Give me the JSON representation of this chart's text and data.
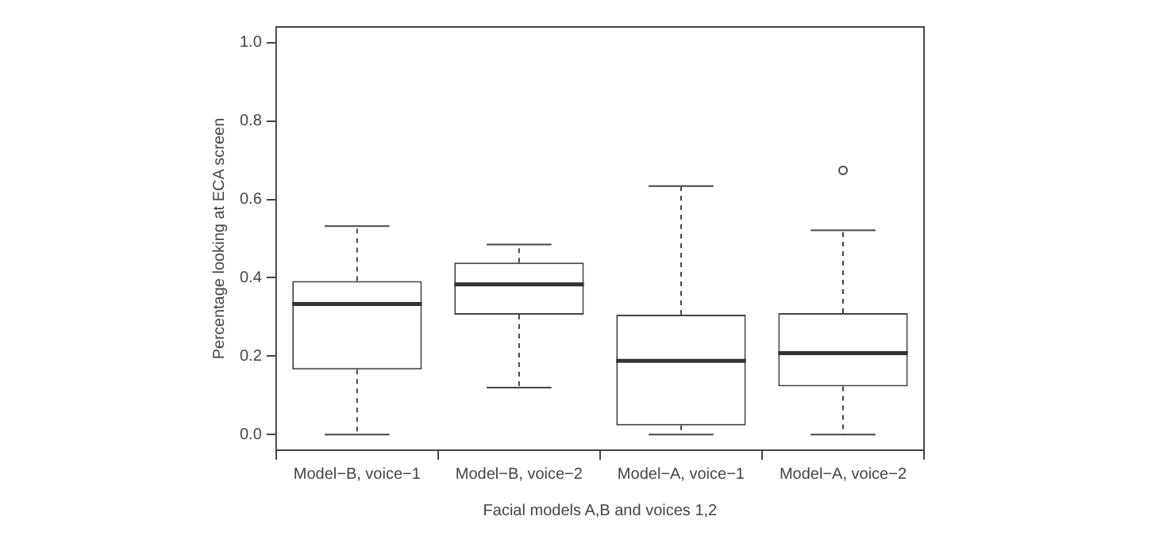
{
  "chart_data": {
    "type": "box",
    "xlabel": "Facial models A,B and voices 1,2",
    "ylabel": "Percentage looking at ECA screen",
    "categories": [
      "Model−B, voice−1",
      "Model−B, voice−2",
      "Model−A, voice−1",
      "Model−A, voice−2"
    ],
    "boxes": [
      {
        "low": 0,
        "q1": 0.166,
        "median": 0.333,
        "q3": 0.392,
        "high": 0.532
      },
      {
        "low": 0.12,
        "q1": 0.306,
        "median": 0.383,
        "q3": 0.439,
        "high": 0.485
      },
      {
        "low": 0,
        "q1": 0.023,
        "median": 0.188,
        "q3": 0.306,
        "high": 0.634
      },
      {
        "low": 0,
        "q1": 0.123,
        "median": 0.208,
        "q3": 0.31,
        "high": 0.521,
        "outliers": [
          0.674
        ]
      }
    ],
    "ylim": [
      -0.04,
      1.04
    ],
    "yticks": [
      {
        "value": 0,
        "label": "0.0"
      },
      0.2,
      0.4,
      0.6,
      0.8,
      {
        "value": 1,
        "label": "1.0"
      }
    ],
    "grid": false
  }
}
